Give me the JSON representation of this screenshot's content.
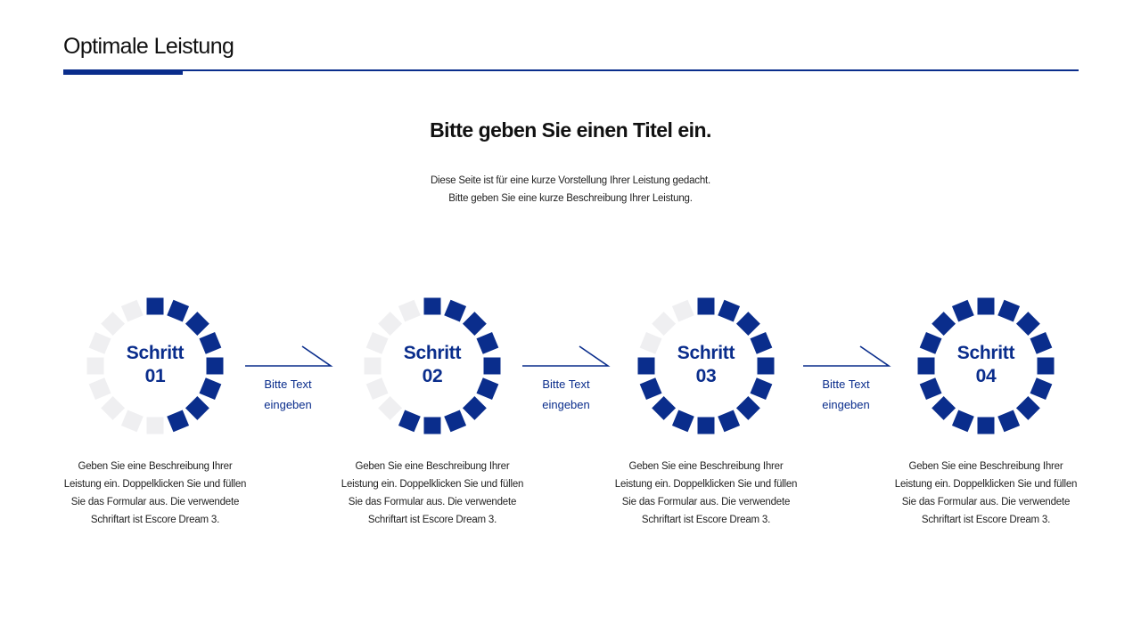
{
  "header": {
    "title": "Optimale Leistung"
  },
  "main": {
    "title": "Bitte geben Sie einen Titel ein.",
    "intro_line1": "Diese Seite ist für eine kurze Vorstellung Ihrer Leistung gedacht.",
    "intro_line2": "Bitte geben Sie eine kurze Beschreibung Ihrer Leistung."
  },
  "colors": {
    "accent": "#0a2d8c",
    "inactive_segment": "#efeff1"
  },
  "steps": [
    {
      "word": "Schritt",
      "number": "01",
      "progress": 0.5,
      "desc": [
        "Geben Sie eine Beschreibung Ihrer",
        "Leistung ein. Doppelklicken Sie und füllen",
        "Sie das Formular aus. Die verwendete",
        "Schriftart ist Escore Dream 3."
      ]
    },
    {
      "word": "Schritt",
      "number": "02",
      "progress": 0.625,
      "desc": [
        "Geben Sie eine Beschreibung Ihrer",
        "Leistung ein. Doppelklicken Sie und füllen",
        "Sie das Formular aus. Die verwendete",
        "Schriftart ist Escore Dream 3."
      ]
    },
    {
      "word": "Schritt",
      "number": "03",
      "progress": 0.8125,
      "desc": [
        "Geben Sie eine Beschreibung Ihrer",
        "Leistung ein. Doppelklicken Sie und füllen",
        "Sie das Formular aus. Die verwendete",
        "Schriftart ist Escore Dream 3."
      ]
    },
    {
      "word": "Schritt",
      "number": "04",
      "progress": 1.0,
      "desc": [
        "Geben Sie eine Beschreibung Ihrer",
        "Leistung ein. Doppelklicken Sie und füllen",
        "Sie das Formular aus. Die verwendete",
        "Schriftart ist Escore Dream 3."
      ]
    }
  ],
  "connectors": [
    {
      "line1": "Bitte Text",
      "line2": "eingeben"
    },
    {
      "line1": "Bitte Text",
      "line2": "eingeben"
    },
    {
      "line1": "Bitte Text",
      "line2": "eingeben"
    }
  ]
}
